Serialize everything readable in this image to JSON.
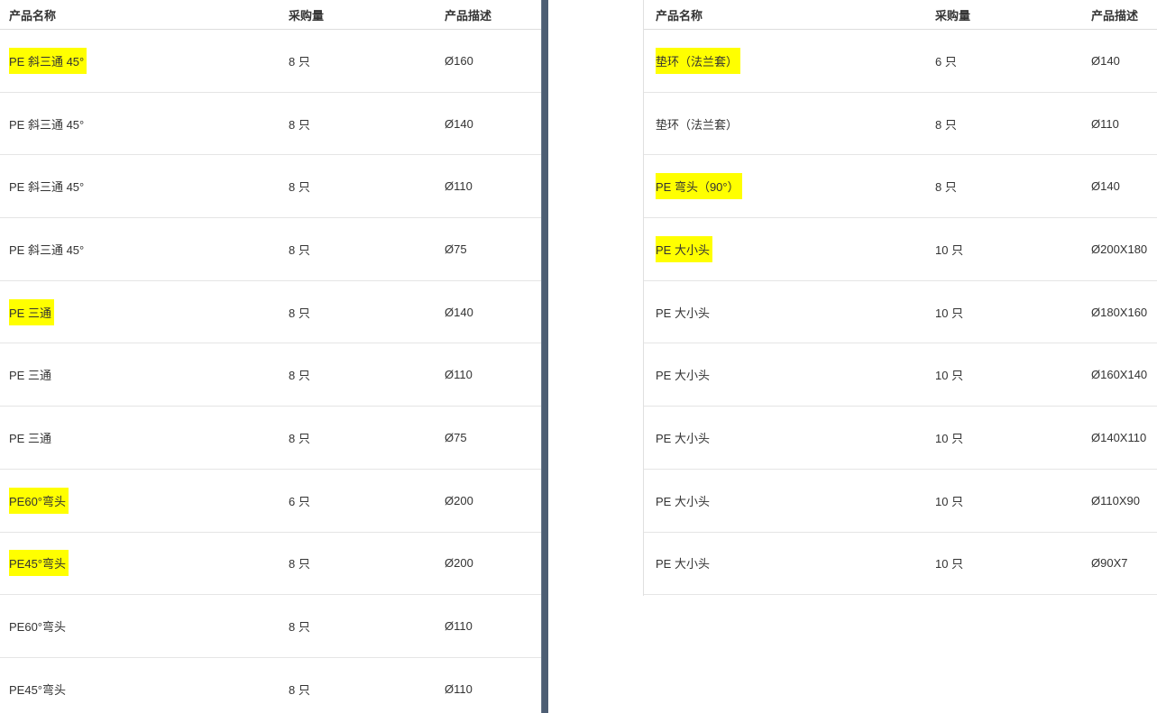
{
  "colors": {
    "highlight": "#ffff00",
    "divider": "#4d5e74",
    "row_border": "#e5e5e5",
    "text": "#333333"
  },
  "left_table": {
    "headers": {
      "name": "产品名称",
      "qty": "采购量",
      "desc": "产品描述"
    },
    "rows": [
      {
        "name": "PE 斜三通 45°",
        "qty": "8 只",
        "desc": "Ø160",
        "highlighted": true
      },
      {
        "name": "PE 斜三通 45°",
        "qty": "8 只",
        "desc": "Ø140",
        "highlighted": false
      },
      {
        "name": "PE 斜三通 45°",
        "qty": "8 只",
        "desc": "Ø110",
        "highlighted": false
      },
      {
        "name": "PE 斜三通 45°",
        "qty": "8 只",
        "desc": "Ø75",
        "highlighted": false
      },
      {
        "name": "PE 三通",
        "qty": "8 只",
        "desc": "Ø140",
        "highlighted": true
      },
      {
        "name": "PE 三通",
        "qty": "8 只",
        "desc": "Ø110",
        "highlighted": false
      },
      {
        "name": "PE 三通",
        "qty": "8 只",
        "desc": "Ø75",
        "highlighted": false
      },
      {
        "name": "PE60°弯头",
        "qty": "6 只",
        "desc": "Ø200",
        "highlighted": true
      },
      {
        "name": "PE45°弯头",
        "qty": "8 只",
        "desc": "Ø200",
        "highlighted": true
      },
      {
        "name": "PE60°弯头",
        "qty": "8 只",
        "desc": "Ø110",
        "highlighted": false
      },
      {
        "name": "PE45°弯头",
        "qty": "8 只",
        "desc": "Ø110",
        "highlighted": false
      }
    ]
  },
  "right_table": {
    "headers": {
      "name": "产品名称",
      "qty": "采购量",
      "desc": "产品描述"
    },
    "rows": [
      {
        "name": "垫环（法兰套）",
        "qty": "6 只",
        "desc": "Ø140",
        "highlighted": true
      },
      {
        "name": "垫环（法兰套）",
        "qty": "8 只",
        "desc": "Ø110",
        "highlighted": false
      },
      {
        "name": "PE 弯头（90°）",
        "qty": "8 只",
        "desc": "Ø140",
        "highlighted": true
      },
      {
        "name": "PE 大小头",
        "qty": "10 只",
        "desc": "Ø200X180",
        "highlighted": true
      },
      {
        "name": "PE 大小头",
        "qty": "10 只",
        "desc": "Ø180X160",
        "highlighted": false
      },
      {
        "name": "PE 大小头",
        "qty": "10 只",
        "desc": "Ø160X140",
        "highlighted": false
      },
      {
        "name": "PE 大小头",
        "qty": "10 只",
        "desc": "Ø140X110",
        "highlighted": false
      },
      {
        "name": "PE 大小头",
        "qty": "10 只",
        "desc": "Ø110X90",
        "highlighted": false
      },
      {
        "name": "PE 大小头",
        "qty": "10 只",
        "desc": "Ø90X7",
        "highlighted": false
      }
    ]
  }
}
